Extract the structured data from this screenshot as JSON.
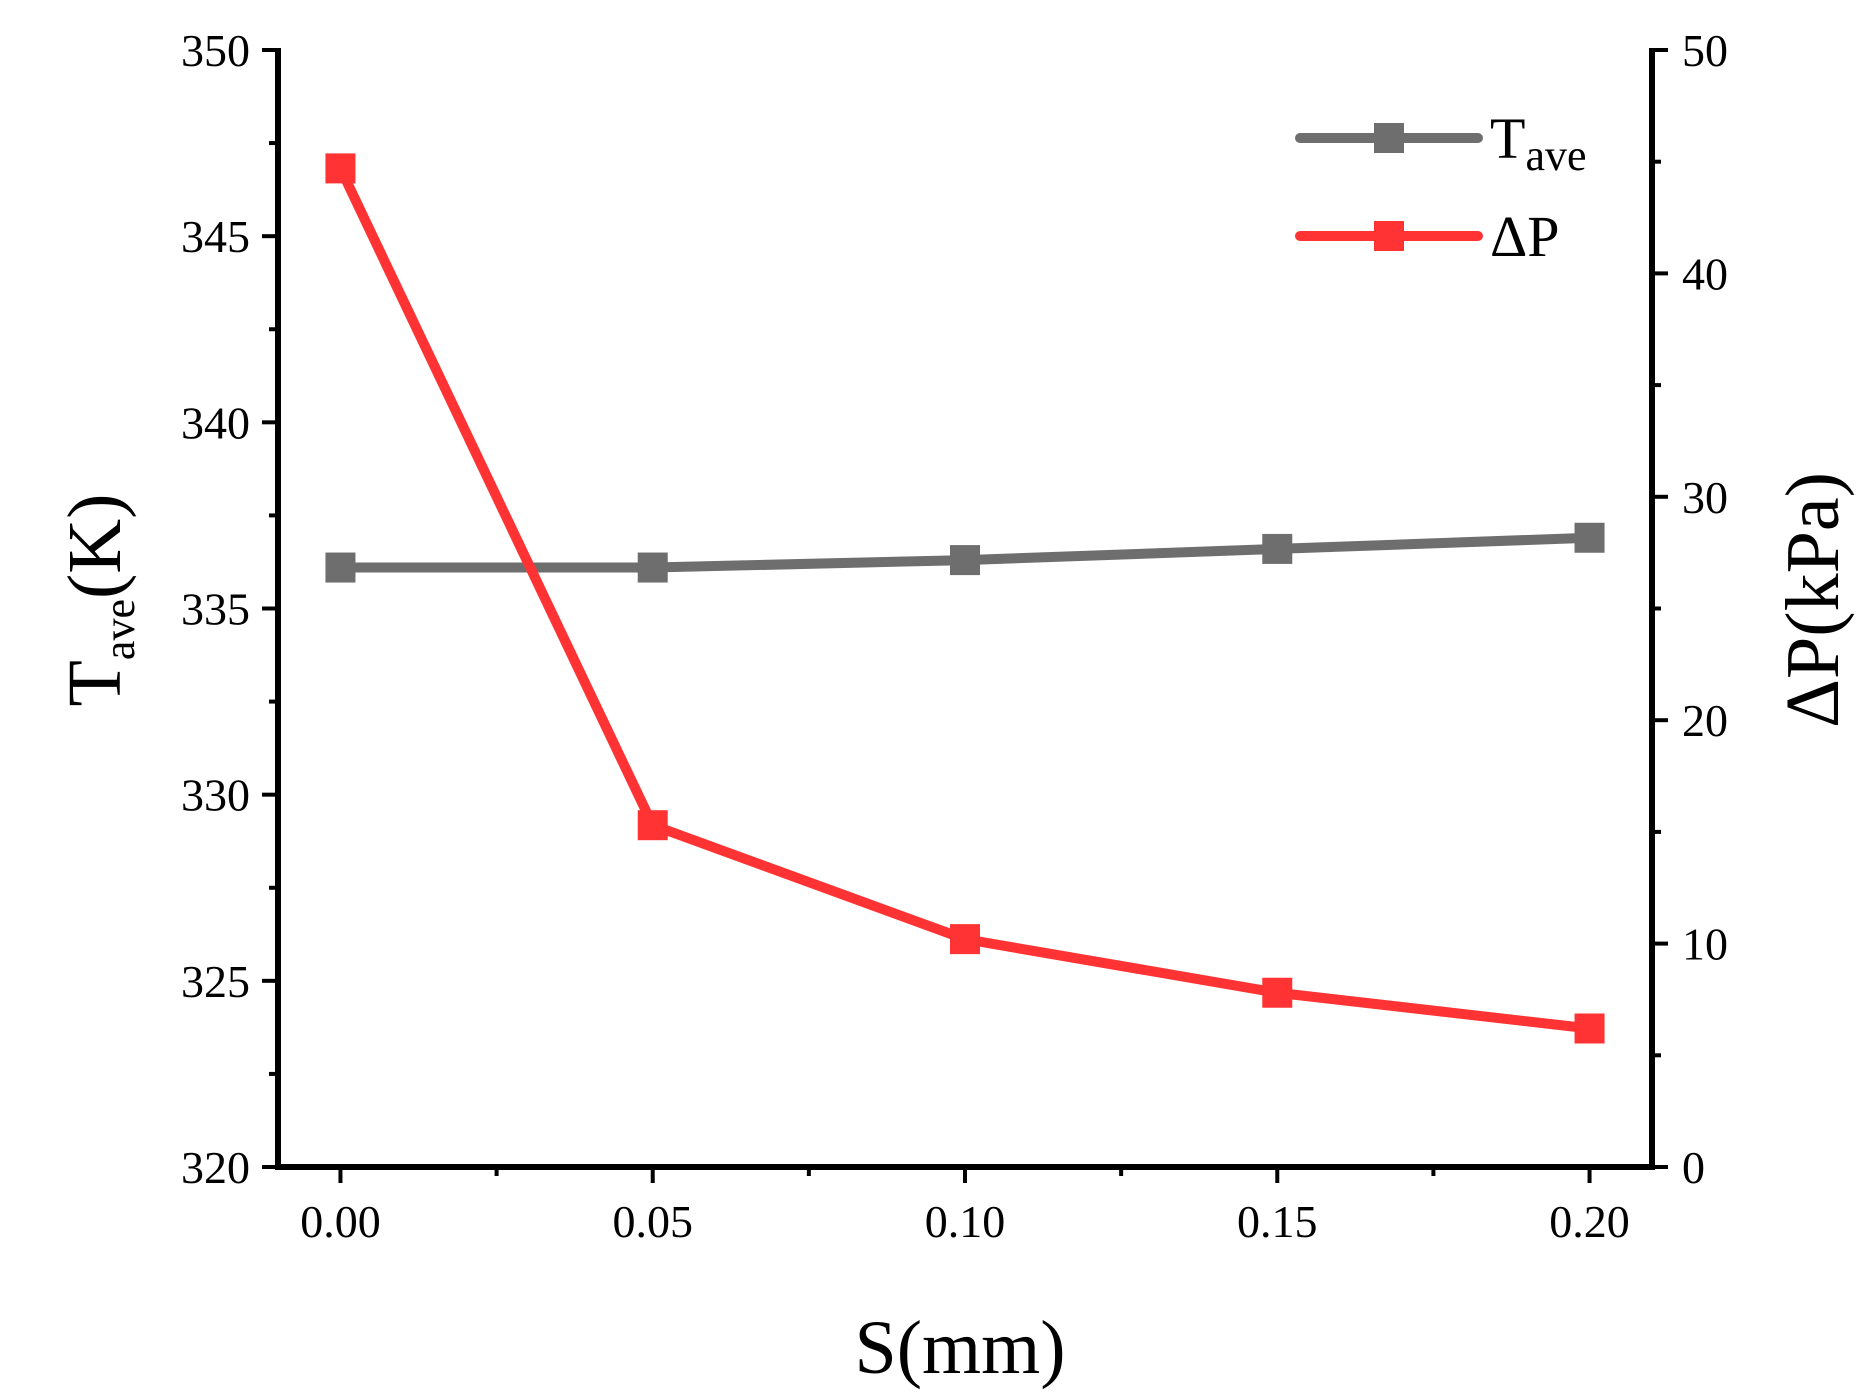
{
  "chart_data": {
    "type": "line",
    "title": "",
    "x": [
      0.0,
      0.05,
      0.1,
      0.15,
      0.2
    ],
    "x_tick_labels": [
      "0.00",
      "0.05",
      "0.10",
      "0.15",
      "0.20"
    ],
    "xlabel": "S(mm)",
    "xlim": [
      -0.01,
      0.21
    ],
    "y_left": {
      "label_main": "T",
      "label_sub": "ave",
      "label_suffix": "(K)",
      "lim": [
        320,
        350
      ],
      "ticks": [
        320,
        325,
        330,
        335,
        340,
        345,
        350
      ],
      "tick_labels": [
        "320",
        "325",
        "330",
        "335",
        "340",
        "345",
        "350"
      ]
    },
    "y_right": {
      "label": "ΔP(kPa)",
      "lim": [
        0,
        50
      ],
      "ticks": [
        0,
        10,
        20,
        30,
        40,
        50
      ],
      "tick_labels": [
        "0",
        "10",
        "20",
        "30",
        "40",
        "50"
      ]
    },
    "series": [
      {
        "name_main": "T",
        "name_sub": "ave",
        "axis": "left",
        "color": "#6e6e6e",
        "marker": "square",
        "values": [
          336.1,
          336.1,
          336.3,
          336.6,
          336.9
        ]
      },
      {
        "name_main": "ΔP",
        "name_sub": "",
        "axis": "right",
        "color": "#ff3333",
        "marker": "square",
        "values": [
          44.7,
          15.3,
          10.2,
          7.8,
          6.2
        ]
      }
    ],
    "legend_position": "top-right",
    "grid": false
  }
}
